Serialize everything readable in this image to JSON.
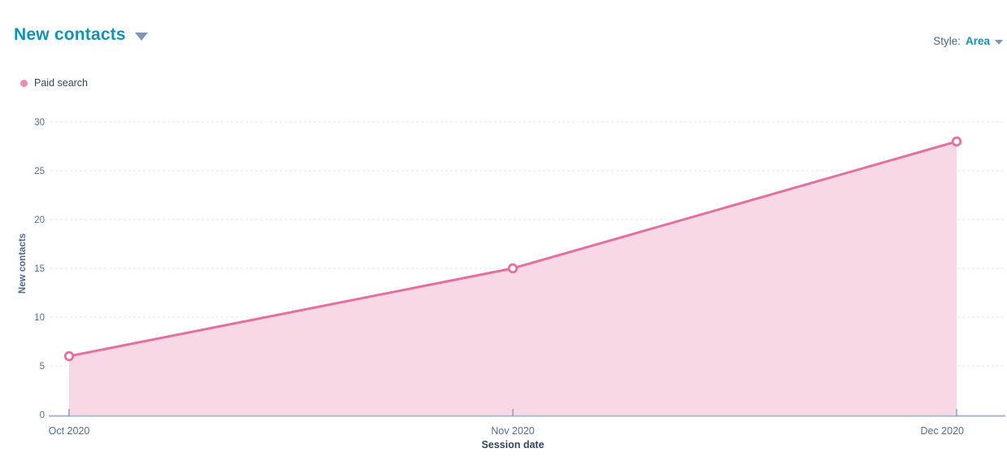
{
  "header": {
    "title": "New contacts",
    "style_label": "Style:",
    "style_value": "Area"
  },
  "legend": {
    "items": [
      {
        "label": "Paid search",
        "color": "#ed8cb0"
      }
    ]
  },
  "chart_data": {
    "type": "area",
    "categories": [
      "Oct 2020",
      "Nov 2020",
      "Dec 2020"
    ],
    "series": [
      {
        "name": "Paid search",
        "values": [
          6,
          15,
          28
        ]
      }
    ],
    "title": "New contacts",
    "xlabel": "Session date",
    "ylabel": "New contacts",
    "ylim": [
      0,
      30
    ],
    "yticks": [
      0,
      5,
      10,
      15,
      20,
      25,
      30
    ],
    "grid": "horizontal-dashed",
    "legend_position": "top-left",
    "marker": "open-circle"
  },
  "colors": {
    "accent_teal": "#1093b5",
    "series_line": "#e5709f",
    "series_fill": "#f8d8e4",
    "marker_fill": "#ffffff",
    "grid_line": "#e0e6ed",
    "axis_line": "#a3b6ca",
    "tick_mark": "#8ba1b8",
    "tick_text": "#516f90",
    "text_dark": "#33475b"
  }
}
